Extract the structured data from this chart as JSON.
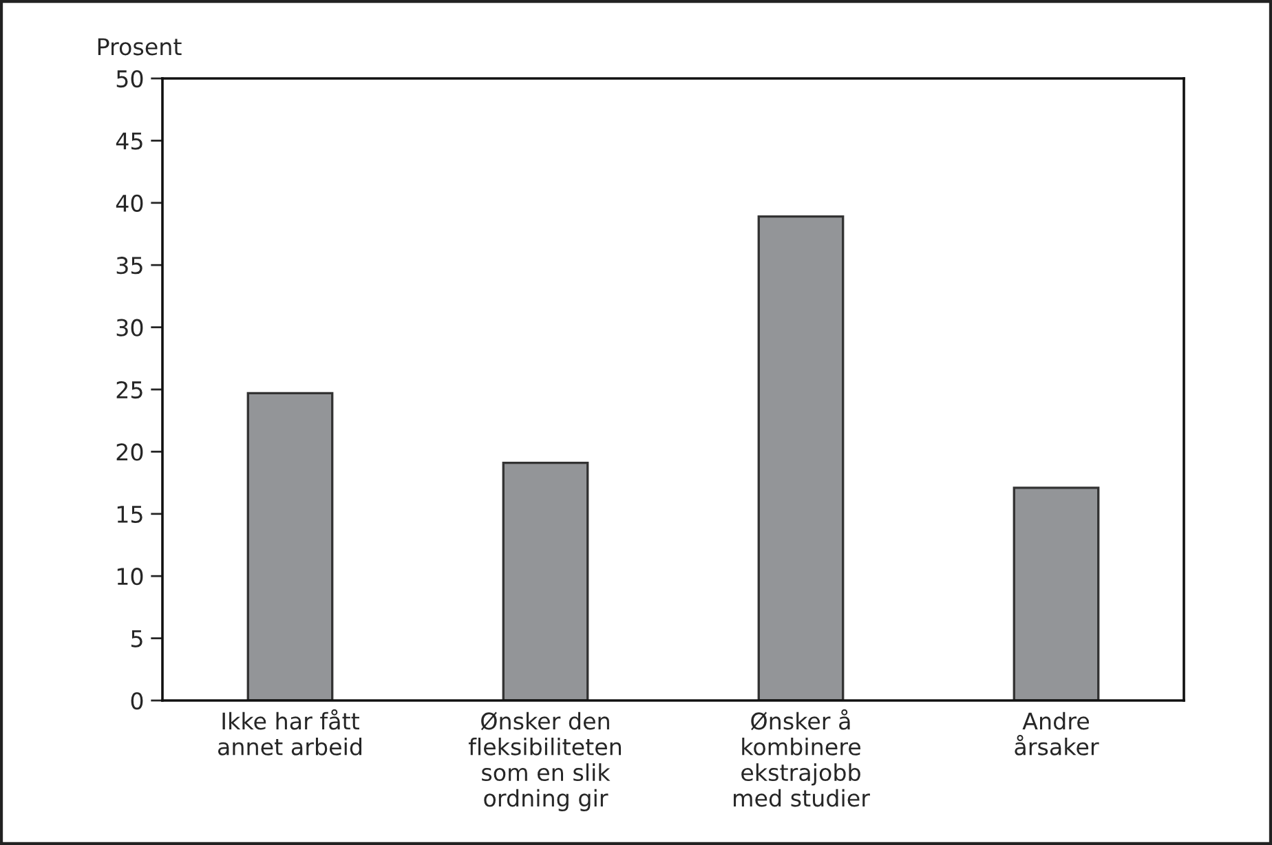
{
  "chart_data": {
    "type": "bar",
    "ylabel": "Prosent",
    "categories": [
      "Ikke har fått\nannet arbeid",
      "Ønsker den\nfleksibiliteten\nsom en slik\nordning gir",
      "Ønsker å\nkombinere\nekstrajobb\nmed studier",
      "Andre\nårsaker"
    ],
    "values": [
      24.7,
      19.1,
      38.9,
      17.1
    ],
    "color": "#939598",
    "ylim": [
      0,
      50
    ],
    "yticks": [
      0,
      5,
      10,
      15,
      20,
      25,
      30,
      35,
      40,
      45,
      50
    ],
    "grid": false
  }
}
